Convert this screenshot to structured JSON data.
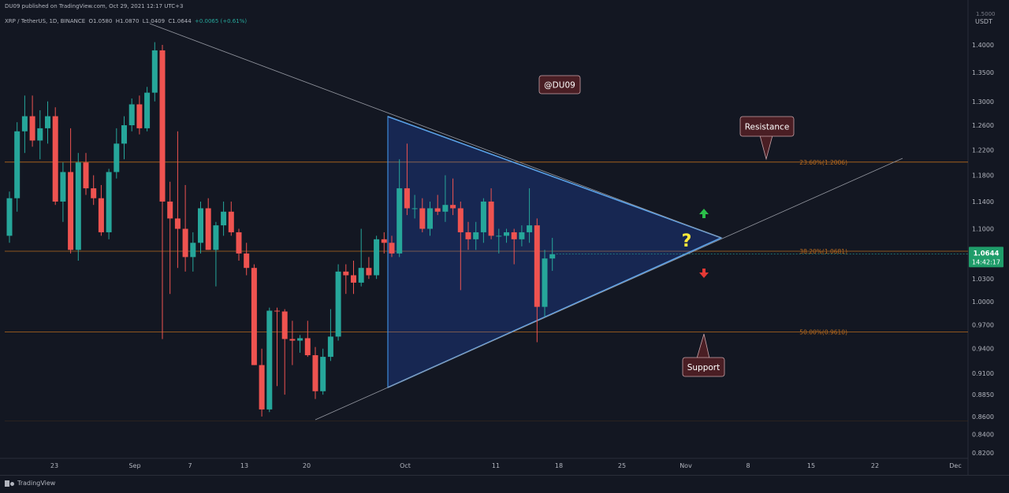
{
  "header": {
    "publisher": "DU09 published on TradingView.com, Oct 29, 2021 12:17 UTC+3",
    "symbol": "XRP / TetherUS, 1D, BINANCE",
    "open": "O1.0580",
    "high": "H1.0870",
    "low": "L1.0409",
    "close": "C1.0644",
    "change": "+0.0065 (+0.61%)"
  },
  "price_axis": {
    "currency": "USDT",
    "top_label": "1.5000",
    "current_price": "1.0644",
    "countdown": "14:42:17"
  },
  "annotations": {
    "watermark_label": "@DU09",
    "resistance_label": "Resistance",
    "support_label": "Support",
    "question_mark": "?"
  },
  "footer": {
    "logo_text": "TradingView"
  },
  "colors": {
    "background": "#131722",
    "up": "#26a69a",
    "down": "#ef5350",
    "fib_line": "#b86a1d",
    "triangle": "#2962ff",
    "callout_bg": "#4a1e24"
  },
  "chart_data": {
    "type": "candlestick",
    "ylim": [
      0.82,
      1.43
    ],
    "scale": "log",
    "y_ticks": [
      "1.4000",
      "1.3500",
      "1.3000",
      "1.2600",
      "1.2200",
      "1.1800",
      "1.1400",
      "1.1000",
      "1.0300",
      "1.0000",
      "0.9700",
      "0.9400",
      "0.9100",
      "0.8850",
      "0.8600",
      "0.8400",
      "0.8200"
    ],
    "x_ticks": [
      "23",
      "Sep",
      "7",
      "13",
      "20",
      "Oct",
      "11",
      "18",
      "25",
      "Nov",
      "8",
      "15",
      "22",
      "Dec"
    ],
    "fib_levels": [
      {
        "label": "23.60%(1.2006)",
        "value": 1.2006
      },
      {
        "label": "38.20%(1.0681)",
        "value": 1.0681
      },
      {
        "label": "50.00%(0.9610)",
        "value": 0.961
      }
    ],
    "candles": [
      {
        "o": 1.09,
        "h": 1.155,
        "l": 1.08,
        "c": 1.145
      },
      {
        "o": 1.145,
        "h": 1.265,
        "l": 1.125,
        "c": 1.25
      },
      {
        "o": 1.25,
        "h": 1.31,
        "l": 1.215,
        "c": 1.275
      },
      {
        "o": 1.275,
        "h": 1.31,
        "l": 1.225,
        "c": 1.235
      },
      {
        "o": 1.235,
        "h": 1.285,
        "l": 1.205,
        "c": 1.255
      },
      {
        "o": 1.255,
        "h": 1.3,
        "l": 1.23,
        "c": 1.275
      },
      {
        "o": 1.275,
        "h": 1.29,
        "l": 1.135,
        "c": 1.14
      },
      {
        "o": 1.14,
        "h": 1.2,
        "l": 1.11,
        "c": 1.185
      },
      {
        "o": 1.185,
        "h": 1.255,
        "l": 1.065,
        "c": 1.07
      },
      {
        "o": 1.07,
        "h": 1.215,
        "l": 1.055,
        "c": 1.2
      },
      {
        "o": 1.2,
        "h": 1.215,
        "l": 1.15,
        "c": 1.16
      },
      {
        "o": 1.16,
        "h": 1.18,
        "l": 1.135,
        "c": 1.145
      },
      {
        "o": 1.145,
        "h": 1.165,
        "l": 1.09,
        "c": 1.095
      },
      {
        "o": 1.095,
        "h": 1.19,
        "l": 1.085,
        "c": 1.185
      },
      {
        "o": 1.185,
        "h": 1.255,
        "l": 1.175,
        "c": 1.23
      },
      {
        "o": 1.23,
        "h": 1.275,
        "l": 1.205,
        "c": 1.26
      },
      {
        "o": 1.26,
        "h": 1.305,
        "l": 1.25,
        "c": 1.295
      },
      {
        "o": 1.295,
        "h": 1.31,
        "l": 1.245,
        "c": 1.255
      },
      {
        "o": 1.255,
        "h": 1.325,
        "l": 1.25,
        "c": 1.315
      },
      {
        "o": 1.315,
        "h": 1.405,
        "l": 1.3,
        "c": 1.39
      },
      {
        "o": 1.39,
        "h": 1.4,
        "l": 0.952,
        "c": 1.14
      },
      {
        "o": 1.14,
        "h": 1.17,
        "l": 1.01,
        "c": 1.115
      },
      {
        "o": 1.115,
        "h": 1.25,
        "l": 1.045,
        "c": 1.1
      },
      {
        "o": 1.1,
        "h": 1.165,
        "l": 1.04,
        "c": 1.06
      },
      {
        "o": 1.06,
        "h": 1.095,
        "l": 1.04,
        "c": 1.08
      },
      {
        "o": 1.08,
        "h": 1.14,
        "l": 1.065,
        "c": 1.13
      },
      {
        "o": 1.13,
        "h": 1.145,
        "l": 1.07,
        "c": 1.07
      },
      {
        "o": 1.07,
        "h": 1.11,
        "l": 1.02,
        "c": 1.105
      },
      {
        "o": 1.105,
        "h": 1.14,
        "l": 1.09,
        "c": 1.125
      },
      {
        "o": 1.125,
        "h": 1.14,
        "l": 1.09,
        "c": 1.095
      },
      {
        "o": 1.095,
        "h": 1.1,
        "l": 1.055,
        "c": 1.065
      },
      {
        "o": 1.065,
        "h": 1.08,
        "l": 1.035,
        "c": 1.045
      },
      {
        "o": 1.045,
        "h": 1.05,
        "l": 0.92,
        "c": 0.92
      },
      {
        "o": 0.92,
        "h": 0.94,
        "l": 0.86,
        "c": 0.868
      },
      {
        "o": 0.868,
        "h": 0.992,
        "l": 0.865,
        "c": 0.988
      },
      {
        "o": 0.988,
        "h": 0.992,
        "l": 0.895,
        "c": 0.987
      },
      {
        "o": 0.987,
        "h": 0.99,
        "l": 0.885,
        "c": 0.952
      },
      {
        "o": 0.952,
        "h": 0.975,
        "l": 0.92,
        "c": 0.95
      },
      {
        "o": 0.95,
        "h": 0.957,
        "l": 0.935,
        "c": 0.953
      },
      {
        "o": 0.953,
        "h": 0.975,
        "l": 0.93,
        "c": 0.932
      },
      {
        "o": 0.932,
        "h": 0.942,
        "l": 0.88,
        "c": 0.889
      },
      {
        "o": 0.889,
        "h": 0.94,
        "l": 0.885,
        "c": 0.93
      },
      {
        "o": 0.93,
        "h": 0.99,
        "l": 0.925,
        "c": 0.955
      },
      {
        "o": 0.955,
        "h": 1.05,
        "l": 0.95,
        "c": 1.04
      },
      {
        "o": 1.04,
        "h": 1.05,
        "l": 1.01,
        "c": 1.035
      },
      {
        "o": 1.035,
        "h": 1.055,
        "l": 1.01,
        "c": 1.025
      },
      {
        "o": 1.025,
        "h": 1.1,
        "l": 1.02,
        "c": 1.045
      },
      {
        "o": 1.045,
        "h": 1.06,
        "l": 1.03,
        "c": 1.035
      },
      {
        "o": 1.035,
        "h": 1.09,
        "l": 1.03,
        "c": 1.085
      },
      {
        "o": 1.085,
        "h": 1.095,
        "l": 1.065,
        "c": 1.08
      },
      {
        "o": 1.08,
        "h": 1.09,
        "l": 1.06,
        "c": 1.065
      },
      {
        "o": 1.065,
        "h": 1.205,
        "l": 1.06,
        "c": 1.16
      },
      {
        "o": 1.16,
        "h": 1.23,
        "l": 1.12,
        "c": 1.13
      },
      {
        "o": 1.13,
        "h": 1.15,
        "l": 1.115,
        "c": 1.13
      },
      {
        "o": 1.13,
        "h": 1.145,
        "l": 1.095,
        "c": 1.1
      },
      {
        "o": 1.1,
        "h": 1.14,
        "l": 1.09,
        "c": 1.13
      },
      {
        "o": 1.13,
        "h": 1.15,
        "l": 1.12,
        "c": 1.125
      },
      {
        "o": 1.125,
        "h": 1.18,
        "l": 1.11,
        "c": 1.135
      },
      {
        "o": 1.135,
        "h": 1.175,
        "l": 1.12,
        "c": 1.13
      },
      {
        "o": 1.13,
        "h": 1.14,
        "l": 1.015,
        "c": 1.095
      },
      {
        "o": 1.095,
        "h": 1.11,
        "l": 1.07,
        "c": 1.085
      },
      {
        "o": 1.085,
        "h": 1.11,
        "l": 1.07,
        "c": 1.095
      },
      {
        "o": 1.095,
        "h": 1.145,
        "l": 1.08,
        "c": 1.14
      },
      {
        "o": 1.14,
        "h": 1.16,
        "l": 1.085,
        "c": 1.09
      },
      {
        "o": 1.09,
        "h": 1.1,
        "l": 1.065,
        "c": 1.09
      },
      {
        "o": 1.09,
        "h": 1.1,
        "l": 1.08,
        "c": 1.095
      },
      {
        "o": 1.095,
        "h": 1.1,
        "l": 1.05,
        "c": 1.085
      },
      {
        "o": 1.085,
        "h": 1.105,
        "l": 1.075,
        "c": 1.095
      },
      {
        "o": 1.095,
        "h": 1.16,
        "l": 1.08,
        "c": 1.105
      },
      {
        "o": 1.105,
        "h": 1.115,
        "l": 0.948,
        "c": 0.993
      },
      {
        "o": 0.993,
        "h": 1.07,
        "l": 0.98,
        "c": 1.058
      },
      {
        "o": 1.058,
        "h": 1.087,
        "l": 1.041,
        "c": 1.064
      }
    ]
  }
}
